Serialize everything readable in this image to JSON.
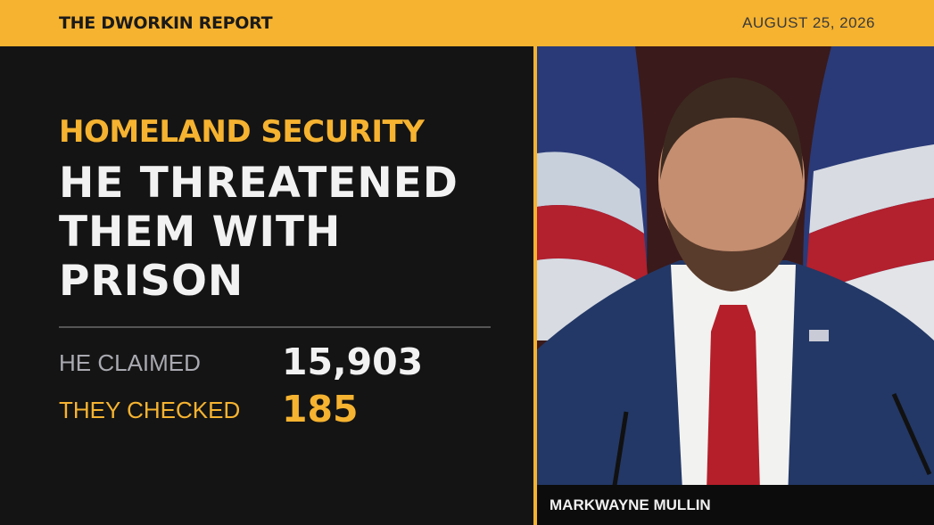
{
  "header": {
    "title": "THE DWORKIN REPORT",
    "date": "AUGUST 25, 2026"
  },
  "topic": "HOMELAND SECURITY",
  "headline": "HE THREATENED THEM WITH PRISON",
  "stats": [
    {
      "label": "HE CLAIMED",
      "value": "15,903"
    },
    {
      "label": "THEY CHECKED",
      "value": "185"
    }
  ],
  "caption": "MARKWAYNE MULLIN"
}
